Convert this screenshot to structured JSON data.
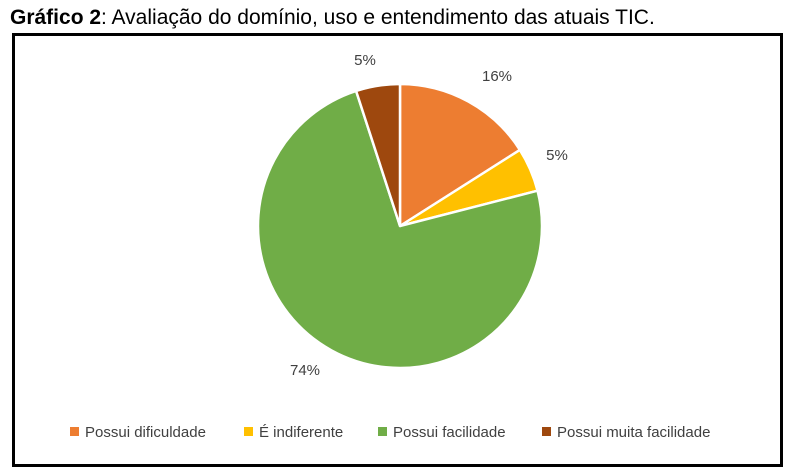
{
  "caption": {
    "prefix": "Gráfico 2",
    "text": ": Avaliação do domínio, uso e entendimento das atuais TIC."
  },
  "chart_data": {
    "type": "pie",
    "title": "",
    "categories": [
      "Possui dificuldade",
      "É indiferente",
      "Possui facilidade",
      "Possui muita facilidade"
    ],
    "values": [
      16,
      5,
      74,
      5
    ],
    "labels": [
      "16%",
      "5%",
      "74%",
      "5%"
    ],
    "colors": [
      "#ED7D31",
      "#FFC000",
      "#70AD47",
      "#9E480E"
    ],
    "legend_position": "bottom"
  }
}
